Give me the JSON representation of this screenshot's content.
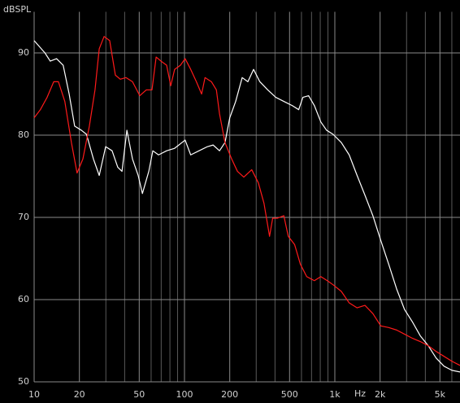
{
  "chart_data": {
    "type": "line",
    "y_label": "dBSPL",
    "x_label": "Hz",
    "xscale": "log",
    "grid": true,
    "xlim": [
      10,
      6800
    ],
    "ylim": [
      50,
      95
    ],
    "xticks": [
      10,
      20,
      50,
      100,
      200,
      500,
      {
        "value": 1000,
        "label": "1k"
      },
      {
        "value": 2000,
        "label": "2k"
      },
      {
        "value": 5000,
        "label": "5k"
      }
    ],
    "xgrid": [
      30,
      40,
      60,
      70,
      80,
      90,
      300,
      400,
      600,
      700,
      800,
      900,
      3000,
      4000,
      6000
    ],
    "yticks": [
      50,
      60,
      70,
      80,
      90
    ],
    "series": [
      {
        "color": "#ffffff",
        "x": [
          10,
          11.8,
          12.8,
          14.1,
          15.6,
          17.1,
          18.6,
          20.6,
          22.3,
          24.8,
          27.1,
          29.9,
          33,
          36,
          38.4,
          41.4,
          45.1,
          49.2,
          52.5,
          57.9,
          61.6,
          67.2,
          76.1,
          86,
          101,
          110,
          125,
          142,
          155,
          171,
          186,
          200,
          219,
          242,
          264,
          288,
          317,
          358,
          405,
          458,
          520,
          575,
          613,
          669,
          731,
          807,
          881,
          974,
          1104,
          1246,
          1406,
          1586,
          1791,
          2021,
          2282,
          2576,
          2907,
          3280,
          3700,
          4178,
          4715,
          5325,
          6010,
          6800
        ],
        "values": [
          91.5,
          90.0,
          89.0,
          89.3,
          88.5,
          85.0,
          81.1,
          80.6,
          80.1,
          77.1,
          75.1,
          78.6,
          78.1,
          76.1,
          75.6,
          80.6,
          77.1,
          75.1,
          72.9,
          75.6,
          78.1,
          77.6,
          78.1,
          78.4,
          79.4,
          77.6,
          78.1,
          78.6,
          78.8,
          78.1,
          79.1,
          82.1,
          84.1,
          87.0,
          86.5,
          88.0,
          86.5,
          85.5,
          84.6,
          84.1,
          83.6,
          83.1,
          84.6,
          84.8,
          83.6,
          81.6,
          80.6,
          80.1,
          79.1,
          77.6,
          75.1,
          72.7,
          70.2,
          67.2,
          64.3,
          61.3,
          58.8,
          57.3,
          55.6,
          54.4,
          52.9,
          51.9,
          51.4,
          51.2
        ]
      },
      {
        "color": "#ff1a1a",
        "x": [
          10,
          11,
          12.2,
          13.5,
          14.5,
          16,
          17.7,
          19.3,
          21.1,
          23.3,
          25.4,
          27.1,
          29.2,
          31.8,
          34.7,
          37.4,
          40.8,
          45.1,
          50.4,
          55.7,
          60.8,
          64.8,
          69.8,
          76.1,
          81,
          86,
          94,
          101,
          110,
          120,
          130,
          137,
          151,
          163,
          171,
          186,
          206,
          225,
          248,
          280,
          310,
          338,
          368,
          386,
          414,
          458,
          490,
          540,
          590,
          650,
          731,
          807,
          891,
          974,
          1104,
          1246,
          1406,
          1586,
          1791,
          2021,
          2282,
          2576,
          2907,
          3280,
          3700,
          4178,
          4715,
          5325,
          6010,
          6800
        ],
        "values": [
          82.1,
          83.1,
          84.6,
          86.5,
          86.5,
          84.1,
          79.1,
          75.4,
          77.1,
          81.1,
          85.5,
          90.5,
          92.0,
          91.5,
          87.3,
          86.8,
          87.0,
          86.5,
          84.8,
          85.5,
          85.5,
          89.5,
          89.0,
          88.5,
          86.0,
          88.0,
          88.5,
          89.3,
          88.0,
          86.5,
          85.0,
          87.0,
          86.5,
          85.5,
          82.6,
          79.1,
          77.1,
          75.6,
          74.9,
          75.8,
          74.2,
          71.7,
          67.7,
          69.9,
          69.9,
          70.2,
          67.7,
          66.7,
          64.3,
          62.8,
          62.3,
          62.8,
          62.3,
          61.8,
          61.0,
          59.6,
          59.0,
          59.3,
          58.3,
          56.8,
          56.6,
          56.3,
          55.8,
          55.3,
          54.9,
          54.4,
          53.7,
          53.1,
          52.5,
          52.0
        ]
      }
    ]
  }
}
